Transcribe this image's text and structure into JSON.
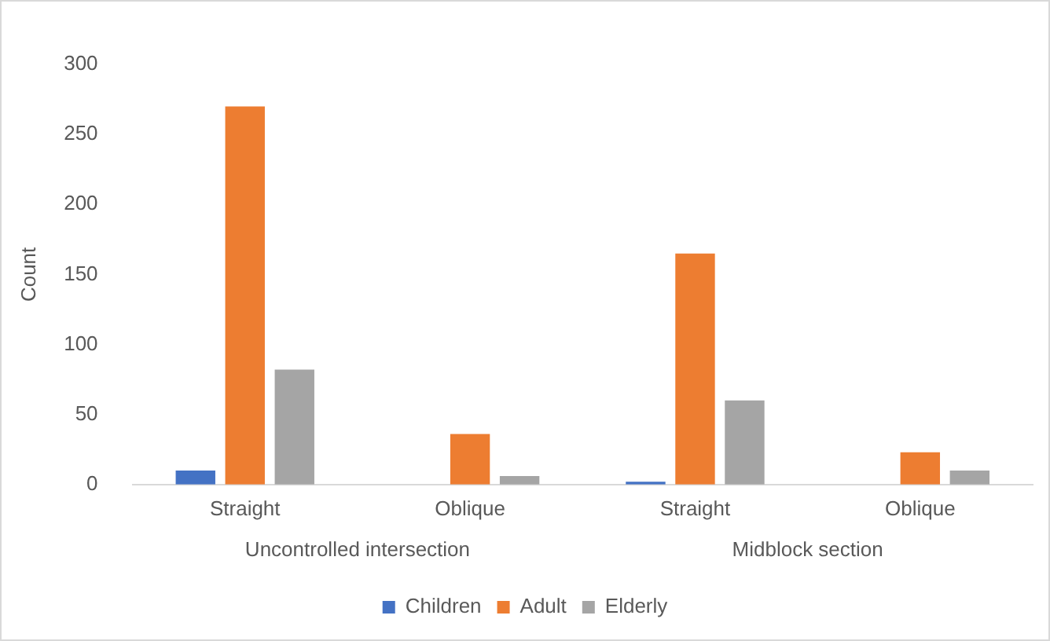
{
  "chart_data": {
    "type": "bar",
    "ylabel": "Count",
    "categories": [
      "Straight",
      "Oblique",
      "Straight",
      "Oblique"
    ],
    "series": [
      {
        "name": "Children",
        "color": "#4472c4",
        "values": [
          10,
          0,
          2,
          0
        ]
      },
      {
        "name": "Adult",
        "color": "#ed7d31",
        "values": [
          270,
          36,
          165,
          23
        ]
      },
      {
        "name": "Elderly",
        "color": "#a5a5a5",
        "values": [
          82,
          6,
          60,
          10
        ]
      }
    ],
    "annotations": [
      "Uncontrolled intersection",
      "Midblock section"
    ],
    "ylim": [
      0,
      300
    ],
    "yticks": [
      0,
      50,
      100,
      150,
      200,
      250,
      300
    ],
    "grid": false,
    "legend": "bottom"
  }
}
